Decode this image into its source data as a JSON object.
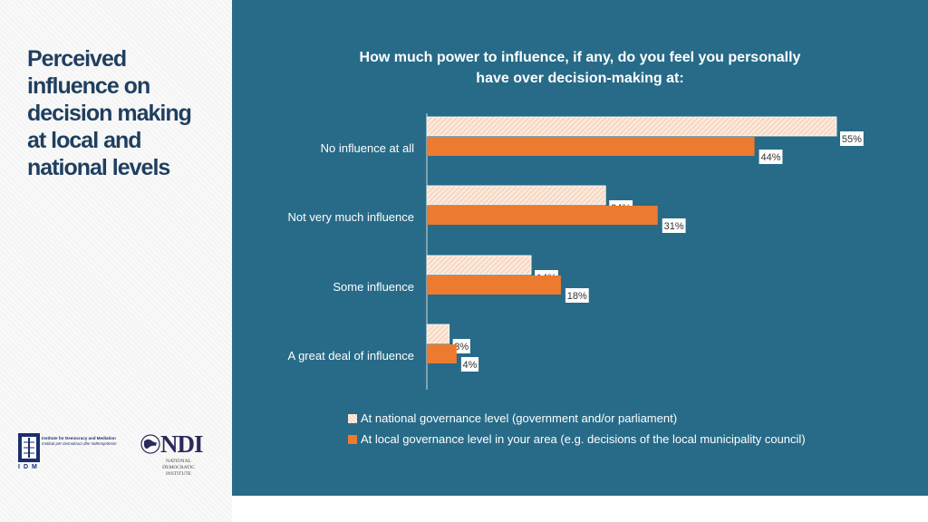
{
  "page": {
    "title_lines": [
      "Perceived",
      "influence on",
      "decision making",
      "at local and",
      "national levels"
    ]
  },
  "logos": {
    "idm": {
      "name_lines": [
        "Institute for Democracy and Mediation",
        "Instituti për Demokraci dhe Ndërmjetësim"
      ],
      "letters": "IDM"
    },
    "ndi": {
      "word": "NDI",
      "sub_lines": [
        "NATIONAL",
        "DEMOCRATIC",
        "INSTITUTE"
      ]
    }
  },
  "colors": {
    "panel": "#276b88",
    "national_fill": "#fbe9dc",
    "national_hatch": "#f2bf9b",
    "local": "#ec7b30",
    "title_text": "#1f3f5f"
  },
  "chart_data": {
    "type": "bar",
    "orientation": "horizontal",
    "title": "How much power to influence, if any, do you feel you personally have over decision-making at:",
    "title_lines": [
      "How much power to influence, if any, do you feel you personally",
      "have over decision-making at:"
    ],
    "categories": [
      "No influence at all",
      "Not very much influence",
      "Some influence",
      "A great deal of influence"
    ],
    "series": [
      {
        "name": "At national governance level (government and/or parliament)",
        "values": [
          55,
          24,
          14,
          3
        ],
        "labels": [
          "55%",
          "24%",
          "14%",
          "3%"
        ]
      },
      {
        "name": "At local governance level in your area (e.g. decisions of the local municipality council)",
        "values": [
          44,
          31,
          18,
          4
        ],
        "labels": [
          "44%",
          "31%",
          "18%",
          "4%"
        ]
      }
    ],
    "value_unit": "%",
    "xlim": [
      0,
      55
    ],
    "grid": false,
    "legend": "bottom"
  }
}
